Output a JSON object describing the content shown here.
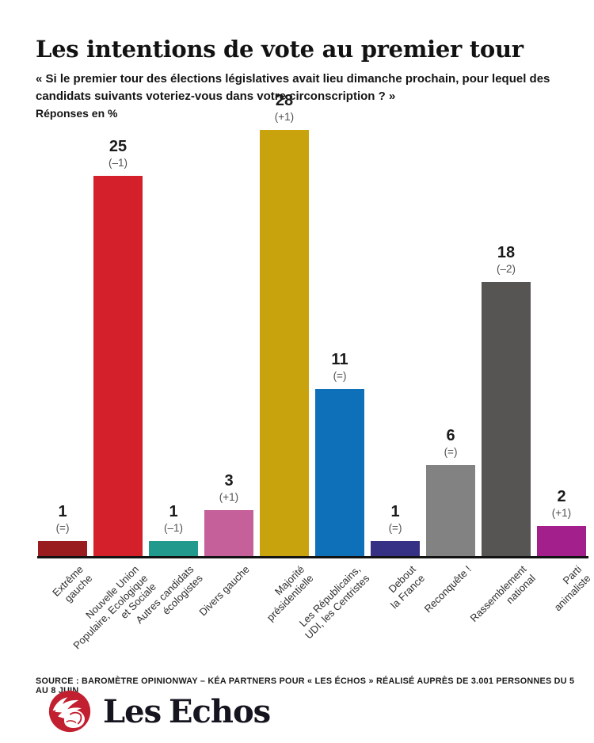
{
  "header": {
    "title": "Les intentions de vote au premier tour",
    "subtitle": "« Si le premier tour des élections législatives avait lieu dimanche prochain, pour lequel des candidats suivants voteriez-vous dans votre circonscription ? »",
    "note": "Réponses en %"
  },
  "chart_data": {
    "type": "bar",
    "title": "Les intentions de vote au premier tour",
    "unit": "%",
    "ylim": [
      0,
      28
    ],
    "grid": false,
    "legend": "none",
    "value_labels": "above bars with evolution delta in parentheses",
    "categories": [
      "Extrême gauche",
      "Nouvelle Union Populaire, Ecologique et Sociale",
      "Autres candidats écologistes",
      "Divers gauche",
      "Majorité présidentielle",
      "Les Républicains, UDI, les Centristes",
      "Debout la France",
      "Reconquête !",
      "Rassemblement national",
      "Parti animaliste"
    ],
    "values": [
      1,
      25,
      1,
      3,
      28,
      11,
      1,
      6,
      18,
      2
    ],
    "deltas": [
      "(=)",
      "(–1)",
      "(–1)",
      "(+1)",
      "(+1)",
      "(=)",
      "(=)",
      "(=)",
      "(–2)",
      "(+1)"
    ],
    "colors": [
      "#991c1f",
      "#d3202a",
      "#21998c",
      "#c6609a",
      "#c9a30e",
      "#0e70b8",
      "#373185",
      "#828282",
      "#575554",
      "#a31f8c"
    ],
    "bars": [
      {
        "value": 1,
        "delta": "(=)",
        "color": "#991c1f",
        "category_lines": [
          "Extrême",
          "gauche"
        ]
      },
      {
        "value": 25,
        "delta": "(–1)",
        "color": "#d3202a",
        "category_lines": [
          "Nouvelle Union",
          "Populaire, Ecologique",
          "et Sociale"
        ]
      },
      {
        "value": 1,
        "delta": "(–1)",
        "color": "#21998c",
        "category_lines": [
          "Autres candidats",
          "écologistes"
        ]
      },
      {
        "value": 3,
        "delta": "(+1)",
        "color": "#c6609a",
        "category_lines": [
          "Divers gauche"
        ]
      },
      {
        "value": 28,
        "delta": "(+1)",
        "color": "#c9a30e",
        "category_lines": [
          "Majorité",
          "présidentielle"
        ]
      },
      {
        "value": 11,
        "delta": "(=)",
        "color": "#0e70b8",
        "category_lines": [
          "Les Républicains,",
          "UDI, les Centristes"
        ]
      },
      {
        "value": 1,
        "delta": "(=)",
        "color": "#373185",
        "category_lines": [
          "Debout",
          "la France"
        ]
      },
      {
        "value": 6,
        "delta": "(=)",
        "color": "#828282",
        "category_lines": [
          "Reconquête !"
        ]
      },
      {
        "value": 18,
        "delta": "(–2)",
        "color": "#575554",
        "category_lines": [
          "Rassemblement",
          "national"
        ]
      },
      {
        "value": 2,
        "delta": "(+1)",
        "color": "#a31f8c",
        "category_lines": [
          "Parti",
          "animaliste"
        ]
      }
    ]
  },
  "footer": {
    "source": "SOURCE : BAROMÈTRE OPINIONWAY – KÉA PARTNERS POUR « LES ÉCHOS » RÉALISÉ AUPRÈS DE 3.001 PERSONNES DU 5 AU 8 JUIN",
    "logo_text": "Les Echos",
    "logo_color": "#c22030"
  }
}
